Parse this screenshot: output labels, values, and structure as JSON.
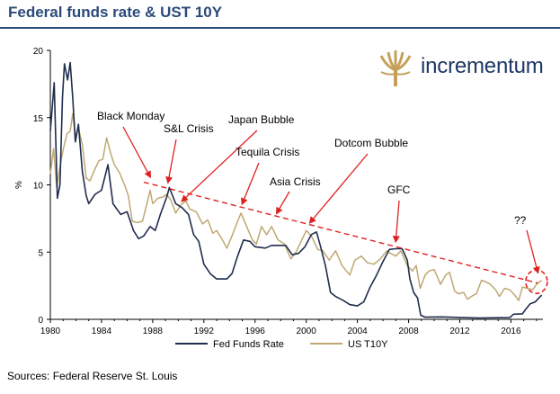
{
  "title": "Federal funds rate & UST 10Y",
  "source": "Sources: Federal Reserve St. Louis",
  "logo": {
    "text": "incrementum",
    "icon": "tree-logo-icon",
    "color": "#c5a05a"
  },
  "chart_data": {
    "type": "line",
    "ylabel": "%",
    "xlabel": "",
    "xlim": [
      1980,
      2018.5
    ],
    "ylim": [
      0,
      20
    ],
    "xticks": [
      "1980",
      "1984",
      "1988",
      "1992",
      "1996",
      "2000",
      "2004",
      "2008",
      "2012",
      "2016"
    ],
    "yticks": [
      "0",
      "5",
      "10",
      "15",
      "20"
    ],
    "legend_position": "bottom-center",
    "series": [
      {
        "name": "Fed Funds Rate",
        "color": "#1f2d4d",
        "points": [
          [
            1980.0,
            14.0
          ],
          [
            1980.3,
            17.6
          ],
          [
            1980.55,
            9.0
          ],
          [
            1980.75,
            10.0
          ],
          [
            1980.95,
            16.5
          ],
          [
            1981.1,
            19.0
          ],
          [
            1981.35,
            17.8
          ],
          [
            1981.55,
            19.1
          ],
          [
            1981.75,
            16.5
          ],
          [
            1981.95,
            13.2
          ],
          [
            1982.2,
            14.5
          ],
          [
            1982.5,
            11.0
          ],
          [
            1982.8,
            9.2
          ],
          [
            1983.0,
            8.6
          ],
          [
            1983.5,
            9.3
          ],
          [
            1984.0,
            9.6
          ],
          [
            1984.5,
            11.5
          ],
          [
            1984.9,
            8.6
          ],
          [
            1985.5,
            7.8
          ],
          [
            1986.0,
            8.0
          ],
          [
            1986.5,
            6.6
          ],
          [
            1986.9,
            6.0
          ],
          [
            1987.3,
            6.2
          ],
          [
            1987.8,
            6.9
          ],
          [
            1988.2,
            6.6
          ],
          [
            1988.6,
            7.8
          ],
          [
            1989.1,
            9.1
          ],
          [
            1989.3,
            9.8
          ],
          [
            1989.8,
            8.6
          ],
          [
            1990.3,
            8.3
          ],
          [
            1990.8,
            7.8
          ],
          [
            1991.2,
            6.3
          ],
          [
            1991.6,
            5.8
          ],
          [
            1992.0,
            4.1
          ],
          [
            1992.5,
            3.4
          ],
          [
            1993.0,
            3.0
          ],
          [
            1993.8,
            3.0
          ],
          [
            1994.2,
            3.4
          ],
          [
            1994.6,
            4.6
          ],
          [
            1995.1,
            5.9
          ],
          [
            1995.6,
            5.8
          ],
          [
            1996.0,
            5.4
          ],
          [
            1996.8,
            5.3
          ],
          [
            1997.3,
            5.5
          ],
          [
            1997.9,
            5.5
          ],
          [
            1998.4,
            5.5
          ],
          [
            1998.9,
            4.8
          ],
          [
            1999.4,
            4.9
          ],
          [
            1999.9,
            5.4
          ],
          [
            2000.4,
            6.3
          ],
          [
            2000.8,
            6.5
          ],
          [
            2001.1,
            5.5
          ],
          [
            2001.5,
            4.0
          ],
          [
            2001.9,
            2.0
          ],
          [
            2002.3,
            1.7
          ],
          [
            2002.9,
            1.4
          ],
          [
            2003.4,
            1.1
          ],
          [
            2004.0,
            1.0
          ],
          [
            2004.5,
            1.3
          ],
          [
            2005.0,
            2.4
          ],
          [
            2005.5,
            3.3
          ],
          [
            2006.0,
            4.3
          ],
          [
            2006.5,
            5.2
          ],
          [
            2007.0,
            5.25
          ],
          [
            2007.5,
            5.25
          ],
          [
            2007.9,
            4.4
          ],
          [
            2008.1,
            3.0
          ],
          [
            2008.4,
            2.0
          ],
          [
            2008.7,
            1.6
          ],
          [
            2008.95,
            0.3
          ],
          [
            2009.3,
            0.16
          ],
          [
            2010.5,
            0.18
          ],
          [
            2012.0,
            0.14
          ],
          [
            2013.5,
            0.1
          ],
          [
            2015.0,
            0.12
          ],
          [
            2015.9,
            0.13
          ],
          [
            2016.2,
            0.38
          ],
          [
            2016.9,
            0.41
          ],
          [
            2017.2,
            0.8
          ],
          [
            2017.5,
            1.15
          ],
          [
            2017.9,
            1.3
          ],
          [
            2018.2,
            1.6
          ],
          [
            2018.4,
            1.8
          ]
        ]
      },
      {
        "name": "US T10Y",
        "color": "#bfa873",
        "points": [
          [
            1980.0,
            10.8
          ],
          [
            1980.25,
            12.7
          ],
          [
            1980.5,
            9.8
          ],
          [
            1980.8,
            11.6
          ],
          [
            1981.0,
            12.6
          ],
          [
            1981.3,
            13.8
          ],
          [
            1981.55,
            14.0
          ],
          [
            1981.75,
            15.3
          ],
          [
            1981.95,
            13.7
          ],
          [
            1982.2,
            14.2
          ],
          [
            1982.5,
            13.0
          ],
          [
            1982.8,
            10.5
          ],
          [
            1983.1,
            10.3
          ],
          [
            1983.5,
            11.2
          ],
          [
            1983.8,
            11.8
          ],
          [
            1984.1,
            11.9
          ],
          [
            1984.4,
            13.5
          ],
          [
            1984.7,
            12.4
          ],
          [
            1985.0,
            11.5
          ],
          [
            1985.4,
            10.9
          ],
          [
            1985.8,
            10.0
          ],
          [
            1986.1,
            9.2
          ],
          [
            1986.4,
            7.3
          ],
          [
            1986.8,
            7.2
          ],
          [
            1987.2,
            7.3
          ],
          [
            1987.6,
            8.8
          ],
          [
            1987.8,
            9.6
          ],
          [
            1988.0,
            8.6
          ],
          [
            1988.4,
            9.0
          ],
          [
            1988.8,
            9.1
          ],
          [
            1989.1,
            9.3
          ],
          [
            1989.4,
            8.9
          ],
          [
            1989.8,
            7.9
          ],
          [
            1990.2,
            8.5
          ],
          [
            1990.6,
            8.8
          ],
          [
            1990.9,
            8.2
          ],
          [
            1991.4,
            8.0
          ],
          [
            1991.9,
            7.1
          ],
          [
            1992.3,
            7.4
          ],
          [
            1992.7,
            6.4
          ],
          [
            1993.0,
            6.6
          ],
          [
            1993.4,
            6.0
          ],
          [
            1993.8,
            5.3
          ],
          [
            1994.2,
            6.2
          ],
          [
            1994.6,
            7.2
          ],
          [
            1994.9,
            7.9
          ],
          [
            1995.3,
            7.0
          ],
          [
            1995.8,
            5.9
          ],
          [
            1996.1,
            5.6
          ],
          [
            1996.5,
            6.9
          ],
          [
            1996.9,
            6.3
          ],
          [
            1997.3,
            6.9
          ],
          [
            1997.8,
            5.9
          ],
          [
            1998.3,
            5.6
          ],
          [
            1998.8,
            4.5
          ],
          [
            1999.2,
            5.0
          ],
          [
            1999.7,
            6.0
          ],
          [
            2000.0,
            6.6
          ],
          [
            2000.4,
            6.2
          ],
          [
            2000.9,
            5.2
          ],
          [
            2001.3,
            5.1
          ],
          [
            2001.8,
            4.4
          ],
          [
            2002.3,
            5.1
          ],
          [
            2002.8,
            4.0
          ],
          [
            2003.4,
            3.3
          ],
          [
            2003.8,
            4.4
          ],
          [
            2004.3,
            4.7
          ],
          [
            2004.8,
            4.2
          ],
          [
            2005.3,
            4.1
          ],
          [
            2005.8,
            4.5
          ],
          [
            2006.3,
            5.1
          ],
          [
            2006.6,
            4.9
          ],
          [
            2007.0,
            4.7
          ],
          [
            2007.4,
            5.1
          ],
          [
            2007.9,
            4.0
          ],
          [
            2008.3,
            3.6
          ],
          [
            2008.6,
            4.0
          ],
          [
            2008.9,
            2.3
          ],
          [
            2009.3,
            3.3
          ],
          [
            2009.6,
            3.6
          ],
          [
            2010.0,
            3.7
          ],
          [
            2010.5,
            2.6
          ],
          [
            2010.9,
            3.3
          ],
          [
            2011.2,
            3.5
          ],
          [
            2011.6,
            2.1
          ],
          [
            2011.9,
            1.9
          ],
          [
            2012.3,
            2.0
          ],
          [
            2012.6,
            1.5
          ],
          [
            2012.9,
            1.7
          ],
          [
            2013.3,
            1.9
          ],
          [
            2013.7,
            2.9
          ],
          [
            2014.0,
            2.8
          ],
          [
            2014.4,
            2.6
          ],
          [
            2014.8,
            2.2
          ],
          [
            2015.1,
            1.7
          ],
          [
            2015.5,
            2.3
          ],
          [
            2015.9,
            2.2
          ],
          [
            2016.3,
            1.8
          ],
          [
            2016.6,
            1.4
          ],
          [
            2016.9,
            2.4
          ],
          [
            2017.3,
            2.3
          ],
          [
            2017.7,
            2.2
          ],
          [
            2018.0,
            2.6
          ],
          [
            2018.4,
            2.9
          ]
        ]
      }
    ],
    "trendline": {
      "style": "dashed",
      "color": "#e02020",
      "points": [
        [
          1987.3,
          10.2
        ],
        [
          2018.1,
          2.7
        ]
      ]
    },
    "annotations": [
      {
        "text": "Black Monday",
        "arrow_to": [
          1987.8,
          10.6
        ]
      },
      {
        "text": "S&L Crisis",
        "arrow_to": [
          1989.2,
          10.2
        ]
      },
      {
        "text": "Japan Bubble",
        "arrow_to": [
          1990.3,
          8.8
        ]
      },
      {
        "text": "Tequila Crisis",
        "arrow_to": [
          1995.0,
          8.6
        ]
      },
      {
        "text": "Asia Crisis",
        "arrow_to": [
          1997.7,
          7.9
        ]
      },
      {
        "text": "Dotcom Bubble",
        "arrow_to": [
          2000.3,
          7.2
        ]
      },
      {
        "text": "GFC",
        "arrow_to": [
          2007.0,
          5.8
        ]
      },
      {
        "text": "??",
        "arrow_to": [
          2018.1,
          3.5
        ]
      }
    ]
  }
}
